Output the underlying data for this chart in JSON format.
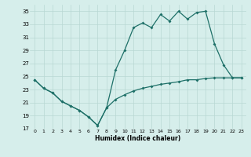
{
  "xlabel": "Humidex (Indice chaleur)",
  "background_color": "#d6eeeb",
  "grid_color": "#b8d8d4",
  "line_color": "#1e7068",
  "x_values": [
    0,
    1,
    2,
    3,
    4,
    5,
    6,
    7,
    8,
    9,
    10,
    11,
    12,
    13,
    14,
    15,
    16,
    17,
    18,
    19,
    20,
    21,
    22,
    23
  ],
  "line1": [
    24.5,
    23.2,
    22.5,
    21.2,
    20.5,
    19.8,
    18.8,
    17.5,
    20.2,
    26.0,
    29.0,
    32.5,
    33.2,
    32.5,
    34.5,
    33.5,
    35.0,
    33.8,
    34.8,
    35.0,
    30.0,
    26.8,
    24.8,
    24.8
  ],
  "line2": [
    24.5,
    23.2,
    22.5,
    21.2,
    20.5,
    19.8,
    18.8,
    17.5,
    20.2,
    21.5,
    22.2,
    22.8,
    23.2,
    23.5,
    23.8,
    24.0,
    24.2,
    24.5,
    24.5,
    24.7,
    24.8,
    24.8,
    24.8,
    24.8
  ],
  "ylim": [
    17,
    36
  ],
  "xlim": [
    -0.5,
    23.5
  ],
  "yticks": [
    17,
    19,
    21,
    23,
    25,
    27,
    29,
    31,
    33,
    35
  ],
  "xticks": [
    0,
    1,
    2,
    3,
    4,
    5,
    6,
    7,
    8,
    9,
    10,
    11,
    12,
    13,
    14,
    15,
    16,
    17,
    18,
    19,
    20,
    21,
    22,
    23
  ]
}
